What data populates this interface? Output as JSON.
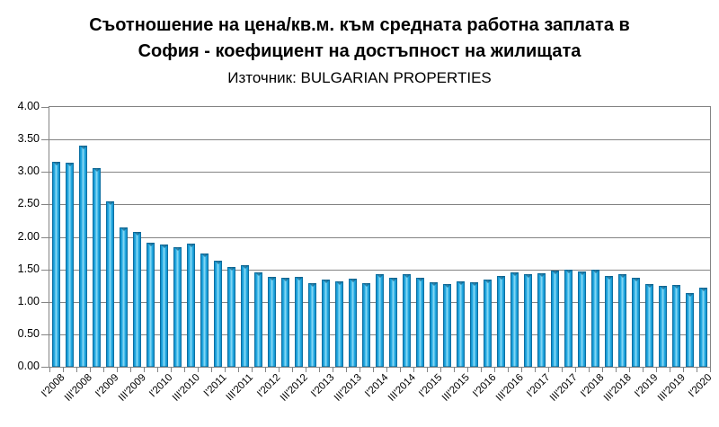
{
  "title": {
    "line1": "Съотношение на цена/кв.м. към средната работна заплата в",
    "line2": "София - коефициент на достъпност на жилищата",
    "source_line": "Източник: BULGARIAN PROPERTIES"
  },
  "colors": {
    "bar_main": "#1ea7e1",
    "bar_edge": "#0d7fb6",
    "bar_highlight": "#8edcf6",
    "bar_outline": "#095f8c",
    "gridline": "#848484",
    "axis": "#848484",
    "text": "#000000",
    "background": "#ffffff"
  },
  "chart_data": {
    "type": "bar",
    "title": "Съотношение на цена/кв.м. към средната работна заплата в София - коефициент на достъпност на жилищата",
    "subtitle": "Източник: BULGARIAN PROPERTIES",
    "xlabel": "",
    "ylabel": "",
    "ylim": [
      0,
      4
    ],
    "ytick_step": 0.5,
    "grid": true,
    "legend": false,
    "y_tick_labels": [
      "4.00",
      "3.50",
      "3.00",
      "2.50",
      "2.00",
      "1.50",
      "1.00",
      "0.50",
      "0.00"
    ],
    "x_tick_labels": [
      "I'2008",
      "III'2008",
      "I'2009",
      "III'2009",
      "I'2010",
      "III'2010",
      "I'2011",
      "III'2011",
      "I'2012",
      "III'2012",
      "I'2013",
      "III'2013",
      "I'2014",
      "III'2014",
      "I'2015",
      "III'2015",
      "I'2016",
      "III'2016",
      "I'2017",
      "III'2017",
      "I'2018",
      "III'2018",
      "I'2019",
      "III'2019",
      "I'2020"
    ],
    "label_every_n_bars": 2,
    "bars_are_quarterly": true,
    "values": [
      3.15,
      3.14,
      3.41,
      3.06,
      2.55,
      2.15,
      2.07,
      1.91,
      1.88,
      1.84,
      1.9,
      1.75,
      1.64,
      1.54,
      1.56,
      1.46,
      1.39,
      1.37,
      1.38,
      1.29,
      1.34,
      1.31,
      1.35,
      1.29,
      1.42,
      1.37,
      1.43,
      1.37,
      1.3,
      1.27,
      1.32,
      1.3,
      1.34,
      1.4,
      1.46,
      1.43,
      1.44,
      1.48,
      1.5,
      1.47,
      1.49,
      1.4,
      1.43,
      1.37,
      1.28,
      1.24,
      1.26,
      1.14,
      1.22
    ]
  }
}
